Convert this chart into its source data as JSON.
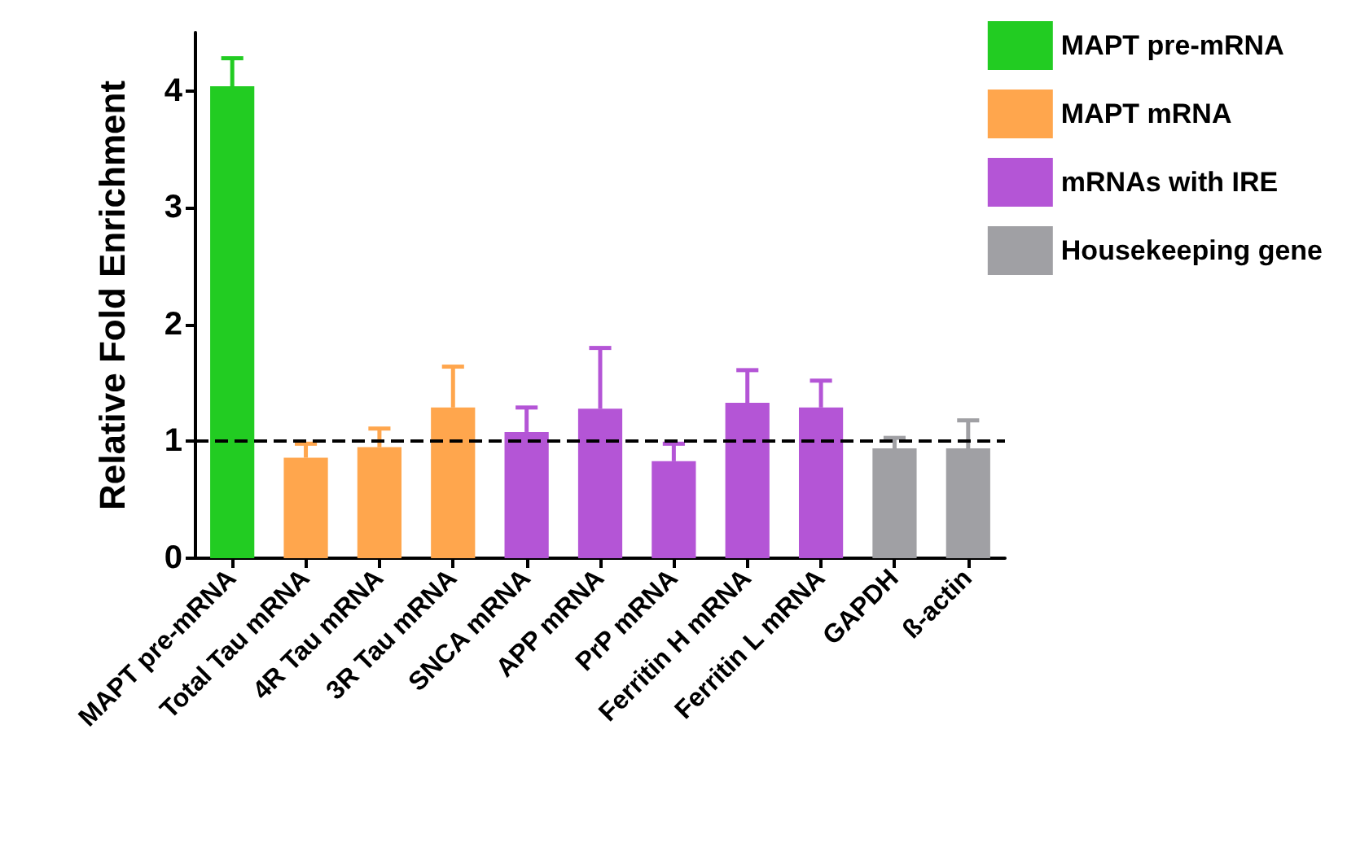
{
  "chart_data": {
    "type": "bar",
    "ylabel": "Relative Fold Enrichment",
    "categories": [
      "MAPT pre-mRNA",
      "Total Tau mRNA",
      "4R Tau mRNA",
      "3R Tau mRNA",
      "SNCA mRNA",
      "APP mRNA",
      "PrP mRNA",
      "Ferritin H mRNA",
      "Ferritin L mRNA",
      "GAPDH",
      "ß-actin"
    ],
    "stacked": true,
    "series": [
      {
        "name": "MAPT pre-mRNA",
        "color": "#22cc22",
        "values": [
          4.04,
          null,
          null,
          null,
          null,
          null,
          null,
          null,
          null,
          null,
          null
        ],
        "errors": [
          [
            4.04,
            4.28
          ],
          null,
          null,
          null,
          null,
          null,
          null,
          null,
          null,
          null,
          null
        ]
      },
      {
        "name": "MAPT mRNA",
        "color": "#ffa64d",
        "values": [
          null,
          0.86,
          0.95,
          1.29,
          null,
          null,
          null,
          null,
          null,
          null,
          null
        ],
        "errors": [
          null,
          [
            0.86,
            0.98
          ],
          [
            0.95,
            1.11
          ],
          [
            1.29,
            1.64
          ],
          null,
          null,
          null,
          null,
          null,
          null,
          null
        ]
      },
      {
        "name": "mRNAs with IRE",
        "color": "#b455d6",
        "values": [
          null,
          null,
          null,
          null,
          1.08,
          1.28,
          0.83,
          1.33,
          1.29,
          null,
          null
        ],
        "errors": [
          null,
          null,
          null,
          null,
          [
            1.08,
            1.29
          ],
          [
            1.28,
            1.8
          ],
          [
            0.83,
            0.98
          ],
          [
            1.33,
            1.61
          ],
          [
            1.29,
            1.52
          ],
          null,
          null
        ]
      },
      {
        "name": "Housekeeping gene",
        "color": "#a0a0a4",
        "values": [
          null,
          null,
          null,
          null,
          null,
          null,
          null,
          null,
          null,
          0.94,
          0.94
        ],
        "errors": [
          null,
          null,
          null,
          null,
          null,
          null,
          null,
          null,
          null,
          [
            0.94,
            1.03
          ],
          [
            0.94,
            1.18
          ]
        ]
      }
    ],
    "ylim": [
      0,
      4.5
    ],
    "yticks": [
      0,
      1,
      2,
      3,
      4
    ],
    "ref_lines": [
      {
        "axis": "y",
        "value": 1,
        "color": "#000000",
        "line_style": "dashed"
      }
    ],
    "legend": "top right",
    "grid": false
  }
}
